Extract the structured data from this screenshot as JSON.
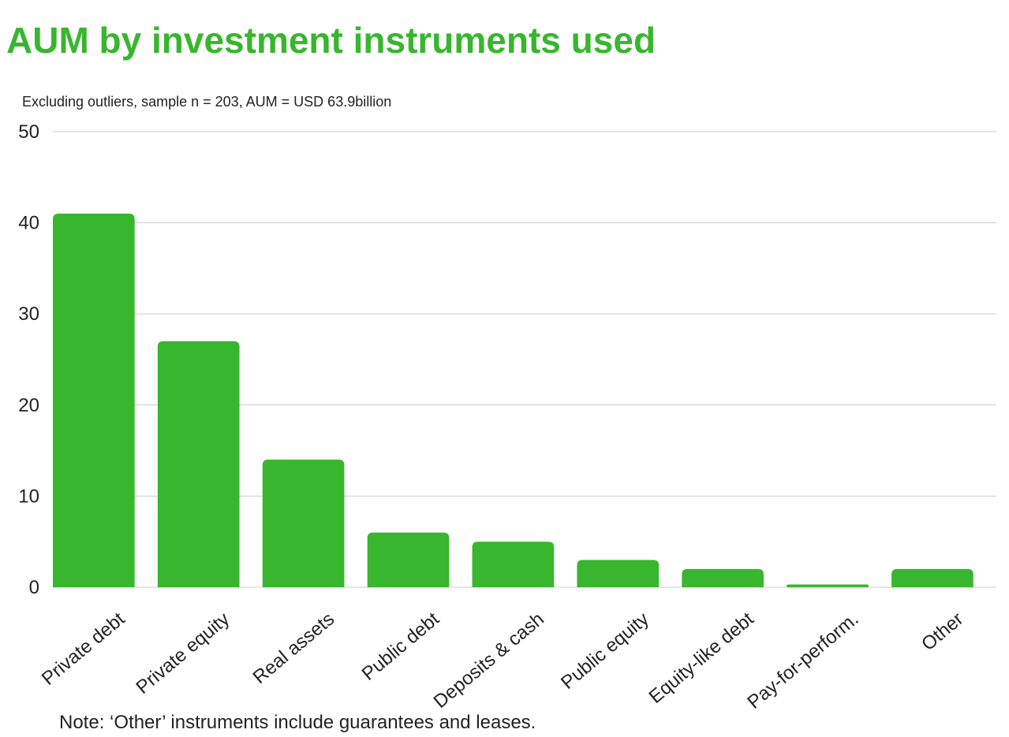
{
  "chart_data": {
    "type": "bar",
    "title": "AUM by investment instruments used",
    "subtitle": "Excluding outliers,  sample n = 203, AUM = USD 63.9billion",
    "note": "Note: ‘Other’ instruments include guarantees and leases.",
    "categories": [
      "Private debt",
      "Private equity",
      "Real assets",
      "Public debt",
      "Deposits & cash",
      "Public equity",
      "Equity-like debt",
      "Pay-for-perform.",
      "Other"
    ],
    "values": [
      41,
      27,
      14,
      6,
      5,
      3,
      2,
      0.3,
      2
    ],
    "ylim": [
      0,
      50
    ],
    "yticks": [
      0,
      10,
      20,
      30,
      40,
      50
    ],
    "xlabel": "",
    "ylabel": "",
    "grid": true,
    "legend": "none",
    "colors": {
      "bar": "#38b62d",
      "title": "#38b62d",
      "grid": "#cccccc",
      "text": "#222222"
    }
  }
}
